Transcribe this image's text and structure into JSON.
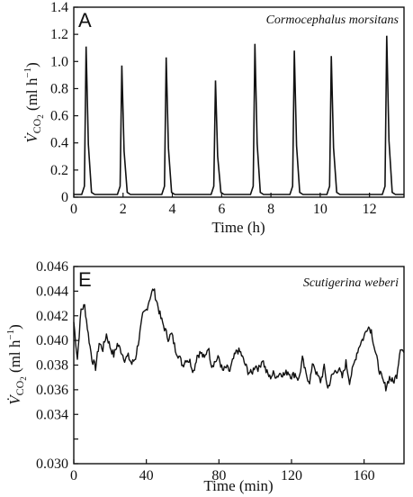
{
  "figure": {
    "panel_a_letter": "A",
    "panel_e_letter": "E",
    "species_a": "Cormocephalus morsitans",
    "species_e": "Scutigerina weberi",
    "ylabel_text_a": "ml h",
    "ylabel_text_e": "ml h",
    "xlabel_a": "Time (h)",
    "xlabel_e": "Time (min)"
  },
  "chart_data": [
    {
      "type": "line",
      "panel": "A",
      "title": "Cormocephalus morsitans",
      "xlabel": "Time (h)",
      "ylabel": "V̇CO₂ (ml h⁻¹)",
      "xlim": [
        0,
        13.4
      ],
      "ylim": [
        0,
        1.4
      ],
      "xticks": [
        0,
        2,
        4,
        6,
        8,
        10,
        12
      ],
      "yticks": [
        0,
        0.2,
        0.4,
        0.6,
        0.8,
        1.0,
        1.2,
        1.4
      ],
      "ytick_labels": [
        "0",
        "0.2",
        "0.4",
        "0.6",
        "0.8",
        "1.0",
        "1.2",
        "1.4"
      ],
      "grid": false,
      "baseline": 0.02,
      "bursts": [
        {
          "t": 0.5,
          "peak": 1.11
        },
        {
          "t": 1.95,
          "peak": 0.97
        },
        {
          "t": 3.75,
          "peak": 1.03
        },
        {
          "t": 5.75,
          "peak": 0.86
        },
        {
          "t": 7.35,
          "peak": 1.13
        },
        {
          "t": 8.95,
          "peak": 1.08
        },
        {
          "t": 10.45,
          "peak": 1.04
        },
        {
          "t": 12.7,
          "peak": 1.19
        }
      ]
    },
    {
      "type": "line",
      "panel": "E",
      "title": "Scutigerina weberi",
      "xlabel": "Time (min)",
      "ylabel": "V̇CO₂ (ml h⁻¹)",
      "xlim": [
        0,
        182
      ],
      "ylim": [
        0.03,
        0.046
      ],
      "xticks": [
        0,
        40,
        80,
        120,
        160
      ],
      "yticks": [
        0.03,
        0.032,
        0.034,
        0.036,
        0.038,
        0.04,
        0.042,
        0.044,
        0.046
      ],
      "ytick_labels": [
        "0.030",
        "",
        "0.034",
        "0.036",
        "0.038",
        "0.040",
        "0.042",
        "0.044",
        "0.046"
      ],
      "grid": false,
      "x": [
        0,
        2,
        4,
        6,
        8,
        10,
        12,
        14,
        16,
        18,
        20,
        22,
        24,
        26,
        28,
        30,
        32,
        34,
        36,
        38,
        40,
        42,
        44,
        46,
        48,
        50,
        52,
        54,
        56,
        58,
        60,
        62,
        64,
        66,
        68,
        70,
        72,
        74,
        76,
        78,
        80,
        82,
        84,
        86,
        88,
        90,
        92,
        94,
        96,
        98,
        100,
        102,
        104,
        106,
        108,
        110,
        112,
        114,
        116,
        118,
        120,
        122,
        124,
        126,
        128,
        130,
        132,
        134,
        136,
        138,
        140,
        142,
        144,
        146,
        148,
        150,
        152,
        154,
        156,
        158,
        160,
        162,
        164,
        166,
        168,
        170,
        172,
        174,
        176,
        178,
        180,
        182
      ],
      "y": [
        0.0415,
        0.0385,
        0.0425,
        0.0428,
        0.0405,
        0.0385,
        0.0378,
        0.0398,
        0.0393,
        0.0405,
        0.0395,
        0.0388,
        0.0397,
        0.0392,
        0.0385,
        0.0387,
        0.0381,
        0.0386,
        0.0402,
        0.042,
        0.0425,
        0.0435,
        0.0442,
        0.043,
        0.0418,
        0.041,
        0.0402,
        0.0405,
        0.0393,
        0.0387,
        0.038,
        0.0385,
        0.0383,
        0.0375,
        0.0388,
        0.039,
        0.0385,
        0.0395,
        0.038,
        0.0383,
        0.0386,
        0.0375,
        0.0378,
        0.0375,
        0.0385,
        0.0392,
        0.039,
        0.0382,
        0.0375,
        0.0373,
        0.038,
        0.0377,
        0.0385,
        0.0375,
        0.037,
        0.0373,
        0.0371,
        0.0374,
        0.0372,
        0.0375,
        0.0371,
        0.0373,
        0.0368,
        0.0385,
        0.0372,
        0.0367,
        0.0382,
        0.0372,
        0.0367,
        0.0378,
        0.0361,
        0.037,
        0.0375,
        0.0377,
        0.037,
        0.0382,
        0.0367,
        0.0378,
        0.039,
        0.0398,
        0.0403,
        0.0412,
        0.0408,
        0.0392,
        0.0378,
        0.0368,
        0.0362,
        0.037,
        0.0366,
        0.0372,
        0.0395,
        0.039
      ]
    }
  ]
}
